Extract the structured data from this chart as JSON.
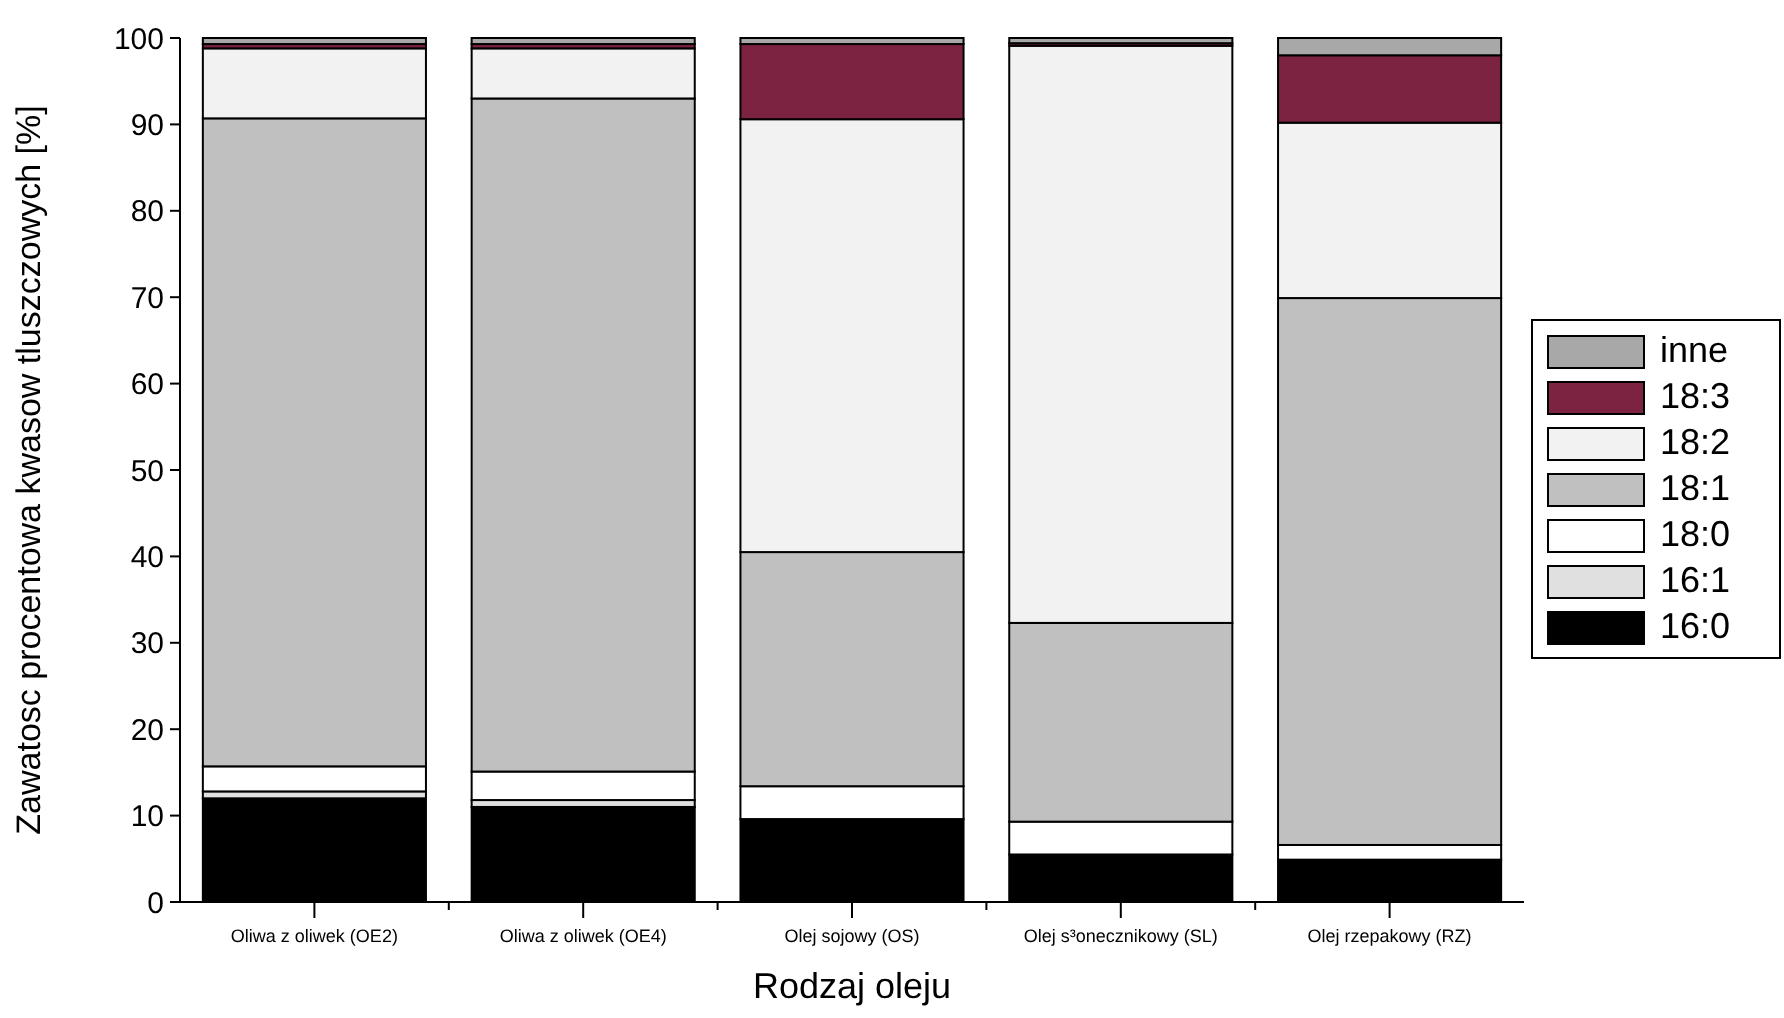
{
  "chart_data": {
    "type": "bar",
    "stacked": true,
    "xlabel": "Rodzaj oleju",
    "ylabel": "Zawatosc procentowa kwasow tluszczowych [%]",
    "categories": [
      "Oliwa z oliwek (OE2)",
      "Oliwa z oliwek (OE4)",
      "Olej sojowy (OS)",
      "Olej s³onecznikowy (SL)",
      "Olej rzepakowy (RZ)"
    ],
    "series": [
      {
        "name": "16:0",
        "color": "#000000",
        "values": [
          12,
          11,
          9.6,
          5.5,
          4.9
        ]
      },
      {
        "name": "16:1",
        "color": "#e0e0e0",
        "values": [
          0.8,
          0.8,
          0,
          0,
          0
        ]
      },
      {
        "name": "18:0",
        "color": "#ffffff",
        "values": [
          2.9,
          3.3,
          3.8,
          3.8,
          1.7
        ]
      },
      {
        "name": "18:1",
        "color": "#c0c0c0",
        "values": [
          75,
          77.9,
          27.1,
          23,
          63.3
        ]
      },
      {
        "name": "18:2",
        "color": "#f2f2f2",
        "values": [
          8.1,
          5.8,
          50.1,
          66.8,
          20.3
        ]
      },
      {
        "name": "18:3",
        "color": "#7b2340",
        "values": [
          0.5,
          0.5,
          8.7,
          0.3,
          7.8
        ]
      },
      {
        "name": "inne",
        "color": "#a8a8a8",
        "values": [
          0.7,
          0.7,
          0.7,
          0.6,
          2
        ]
      }
    ],
    "ylim": [
      0,
      100
    ],
    "yticks": [
      0,
      10,
      20,
      30,
      40,
      50,
      60,
      70,
      80,
      90,
      100
    ],
    "grid": false,
    "legend": "right"
  }
}
